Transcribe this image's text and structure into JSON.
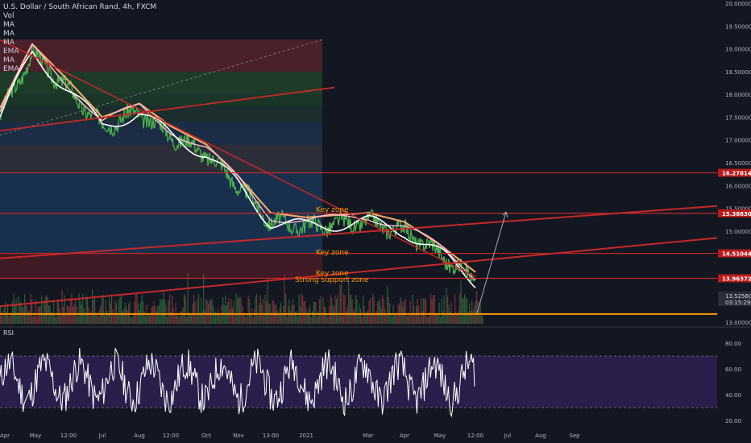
{
  "header": {
    "title": "U.S. Dollar / South African Rand, 4h, FXCM",
    "indicators": [
      "Vol",
      "MA",
      "MA",
      "MA",
      "EMA",
      "MA",
      "EMA"
    ]
  },
  "colors": {
    "background": "#131722",
    "candles": "#4caf50",
    "trendline": "#c62828",
    "price_label": "#b71c1c",
    "support": "#ff9800",
    "annotation": "#ff9800",
    "rsi_line": "#ffffff",
    "rsi_band": "#2a1e4a",
    "ma_white": "#ffffff",
    "ma_orange": "#ffab70",
    "ma_pink": "#f8bbd0"
  },
  "chart_data": {
    "type": "line",
    "title": "U.S. Dollar / South African Rand, 4h, FXCM",
    "yaxis": {
      "ticks": [
        "20.00000",
        "19.50000",
        "19.00000",
        "18.50000",
        "18.00000",
        "17.50000",
        "17.00000",
        "16.50000",
        "16.00000",
        "15.50000",
        "15.00000",
        "14.50000",
        "14.00000",
        "13.50000",
        "13.00000"
      ],
      "ylim": [
        13.0,
        20.0
      ]
    },
    "xaxis": {
      "ticks": [
        "Apr",
        "May",
        "12:00",
        "Jul",
        "Aug",
        "12:00",
        "Oct",
        "Nov",
        "13:00",
        "2021",
        "Mar",
        "Apr",
        "May",
        "12:00",
        "Jul",
        "Aug",
        "Sep"
      ]
    },
    "price_series": {
      "name": "USDZAR",
      "x": [
        "Apr",
        "May",
        "12:00",
        "Jul",
        "Aug",
        "12:00",
        "Oct",
        "Nov",
        "13:00",
        "2021",
        "Mar",
        "Apr",
        "May",
        "12:00"
      ],
      "values": [
        17.5,
        18.9,
        18.1,
        17.3,
        17.6,
        17.1,
        16.7,
        16.0,
        15.2,
        15.1,
        15.2,
        15.0,
        14.5,
        13.9
      ]
    },
    "price_labels": [
      {
        "value": 16.27814,
        "text": "16.27814"
      },
      {
        "value": 15.3883,
        "text": "15.38830"
      },
      {
        "value": 14.51044,
        "text": "14.51044"
      },
      {
        "value": 13.96372,
        "text": "13.96372"
      }
    ],
    "current_price": {
      "text": "13.52560",
      "countdown": "03:15:29"
    },
    "annotations": [
      "Key zone",
      "Key zone",
      "Key zone",
      "Strong support zone"
    ],
    "rsi": {
      "label": "RSI",
      "ticks": [
        "80.00",
        "60.00",
        "40.00",
        "20.00"
      ],
      "ylim": [
        15,
        90
      ],
      "band": [
        30,
        70
      ]
    }
  }
}
